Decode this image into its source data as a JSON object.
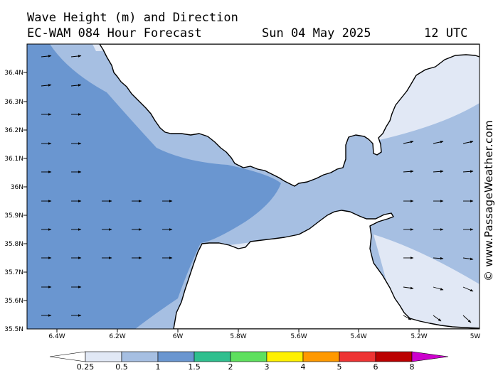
{
  "header": {
    "title": "Wave Height (m) and Direction",
    "model": "EC-WAM 084 Hour Forecast",
    "date": "Sun 04 May 2025",
    "time": "12 UTC"
  },
  "credit": "© www.PassageWeather.com",
  "map": {
    "lon_range": [
      -6.5,
      -5.0
    ],
    "lat_range": [
      35.5,
      36.5
    ],
    "lat_ticks": [
      "36.4N",
      "36.3N",
      "36.2N",
      "36.1N",
      "36N",
      "35.9N",
      "35.8N",
      "35.7N",
      "35.6N",
      "35.5N"
    ],
    "lon_ticks": [
      "6.4W",
      "6.2W",
      "6W",
      "5.8W",
      "5.6W",
      "5.4W",
      "5.2W",
      "5W"
    ]
  },
  "colorbar": {
    "labels": [
      "0.25",
      "0.5",
      "1",
      "1.5",
      "2",
      "3",
      "4",
      "5",
      "6",
      "8"
    ],
    "colors": [
      "#ffffff",
      "#e1e8f5",
      "#a6bfe2",
      "#6a96d0",
      "#2fbf8e",
      "#5ee05e",
      "#fff000",
      "#ff9900",
      "#ee3333",
      "#bb0000",
      "#cc00cc"
    ]
  },
  "wave_colors": {
    "light": "#e1e8f5",
    "medium": "#a6bfe2",
    "dark": "#6a96d0",
    "land": "#ffffff",
    "coast": "#000000"
  }
}
